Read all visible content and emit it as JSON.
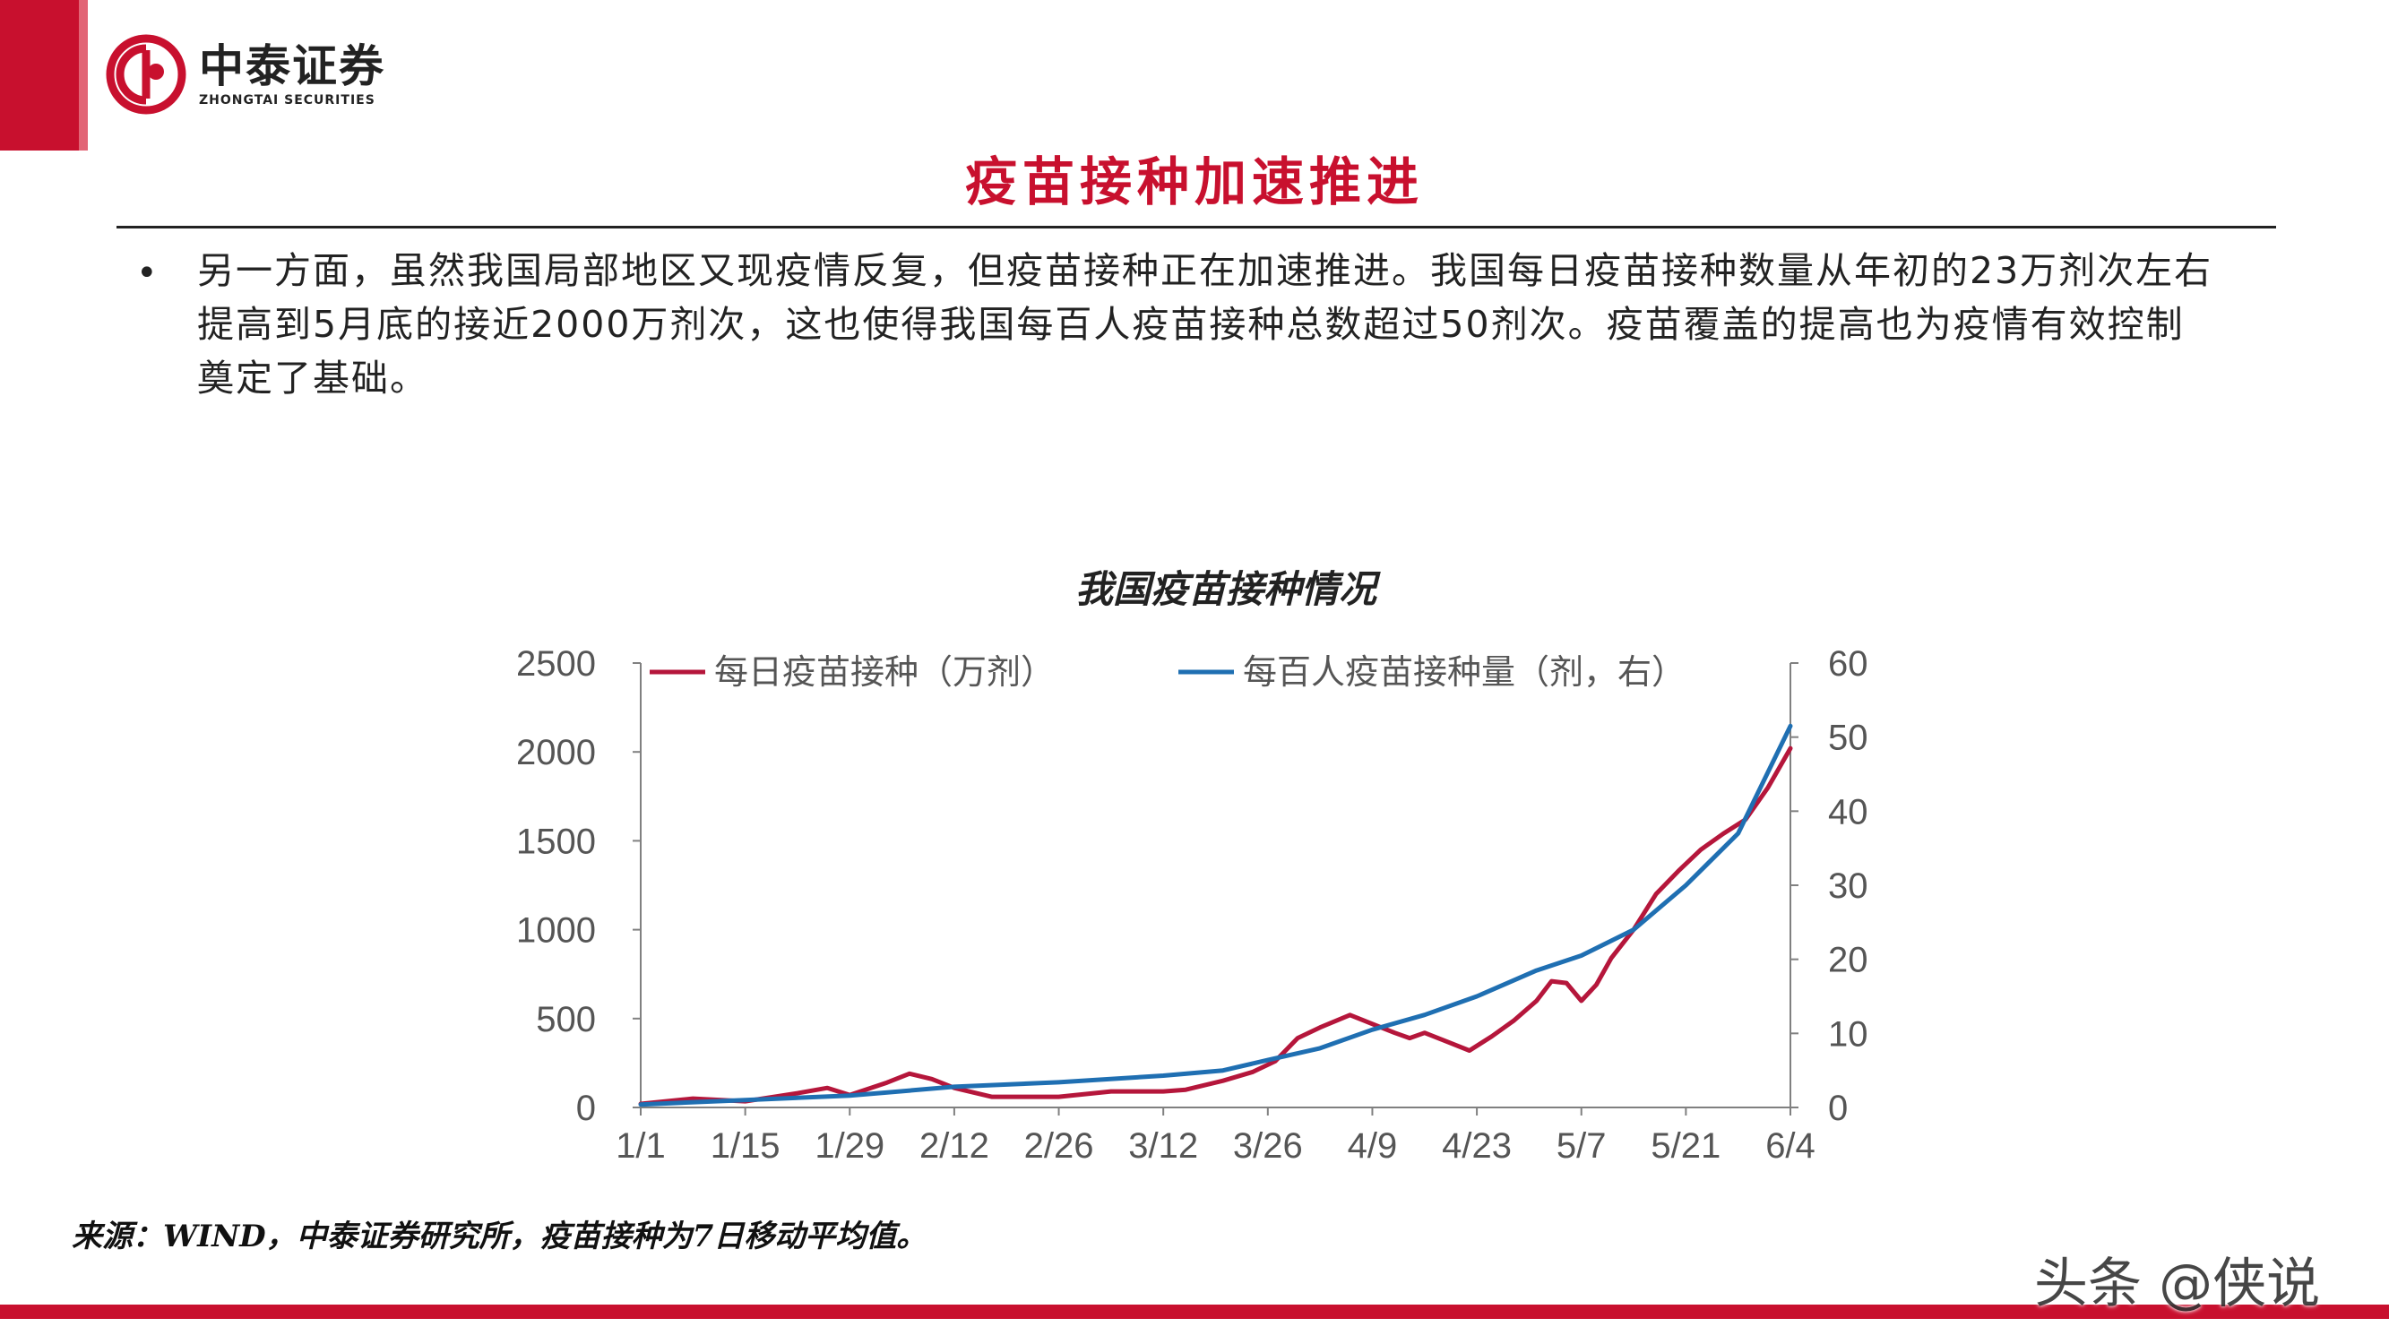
{
  "header": {
    "logo_cn": "中泰证券",
    "logo_en": "ZHONGTAI SECURITIES",
    "title": "疫苗接种加速推进"
  },
  "body": {
    "bullet": "•",
    "paragraph": "另一方面，虽然我国局部地区又现疫情反复，但疫苗接种正在加速推进。我国每日疫苗接种数量从年初的23万剂次左右提高到5月底的接近2000万剂次，这也使得我国每百人疫苗接种总数超过50剂次。疫苗覆盖的提高也为疫情有效控制奠定了基础。"
  },
  "chart_data": {
    "type": "line",
    "title": "我国疫苗接种情况",
    "x_tick_labels": [
      "1/1",
      "1/15",
      "1/29",
      "2/12",
      "2/26",
      "3/12",
      "3/26",
      "4/9",
      "4/23",
      "5/7",
      "5/21",
      "6/4"
    ],
    "x_range": [
      "2021-01-01",
      "2021-06-04"
    ],
    "y_left": {
      "min": 0,
      "max": 2500,
      "ticks": [
        "0",
        "500",
        "1000",
        "1500",
        "2000",
        "2500"
      ]
    },
    "y_right": {
      "min": 0,
      "max": 60,
      "ticks": [
        "0",
        "10",
        "20",
        "30",
        "40",
        "50",
        "60"
      ]
    },
    "legend_position": "top",
    "grid": false,
    "series": [
      {
        "name": "每日疫苗接种（万剂）",
        "axis": "left",
        "color": "#b5163b",
        "points": [
          [
            "1/1",
            20
          ],
          [
            "1/8",
            50
          ],
          [
            "1/15",
            35
          ],
          [
            "1/22",
            80
          ],
          [
            "1/26",
            110
          ],
          [
            "1/29",
            70
          ],
          [
            "2/3",
            140
          ],
          [
            "2/6",
            190
          ],
          [
            "2/9",
            160
          ],
          [
            "2/12",
            110
          ],
          [
            "2/17",
            60
          ],
          [
            "2/26",
            60
          ],
          [
            "3/5",
            90
          ],
          [
            "3/12",
            90
          ],
          [
            "3/15",
            100
          ],
          [
            "3/20",
            150
          ],
          [
            "3/24",
            200
          ],
          [
            "3/27",
            260
          ],
          [
            "3/30",
            390
          ],
          [
            "4/2",
            450
          ],
          [
            "4/6",
            520
          ],
          [
            "4/9",
            470
          ],
          [
            "4/12",
            420
          ],
          [
            "4/14",
            390
          ],
          [
            "4/16",
            420
          ],
          [
            "4/19",
            370
          ],
          [
            "4/22",
            320
          ],
          [
            "4/25",
            400
          ],
          [
            "4/28",
            490
          ],
          [
            "5/1",
            600
          ],
          [
            "5/3",
            710
          ],
          [
            "5/5",
            700
          ],
          [
            "5/7",
            600
          ],
          [
            "5/9",
            690
          ],
          [
            "5/11",
            840
          ],
          [
            "5/14",
            1000
          ],
          [
            "5/17",
            1200
          ],
          [
            "5/20",
            1330
          ],
          [
            "5/23",
            1450
          ],
          [
            "5/26",
            1540
          ],
          [
            "5/29",
            1620
          ],
          [
            "6/1",
            1800
          ],
          [
            "6/4",
            2020
          ]
        ]
      },
      {
        "name": "每百人疫苗接种量（剂，右）",
        "axis": "right",
        "color": "#1f6fb2",
        "points": [
          [
            "1/1",
            0.4
          ],
          [
            "1/15",
            1
          ],
          [
            "1/29",
            1.6
          ],
          [
            "2/12",
            2.8
          ],
          [
            "2/26",
            3.4
          ],
          [
            "3/12",
            4.3
          ],
          [
            "3/20",
            5
          ],
          [
            "3/26",
            6.4
          ],
          [
            "4/2",
            8
          ],
          [
            "4/9",
            10.5
          ],
          [
            "4/16",
            12.5
          ],
          [
            "4/23",
            15
          ],
          [
            "5/1",
            18.5
          ],
          [
            "5/7",
            20.5
          ],
          [
            "5/14",
            24
          ],
          [
            "5/21",
            30
          ],
          [
            "5/28",
            37
          ],
          [
            "6/4",
            51.5
          ]
        ]
      }
    ]
  },
  "footer": {
    "source": "来源：WIND，中泰证券研究所，疫苗接种为7日移动平均值。",
    "watermark": "头条 @侠说"
  },
  "colors": {
    "brand_red": "#c8102e",
    "series_red": "#b5163b",
    "series_blue": "#1f6fb2",
    "axis": "#808080",
    "tick_text": "#555555"
  }
}
